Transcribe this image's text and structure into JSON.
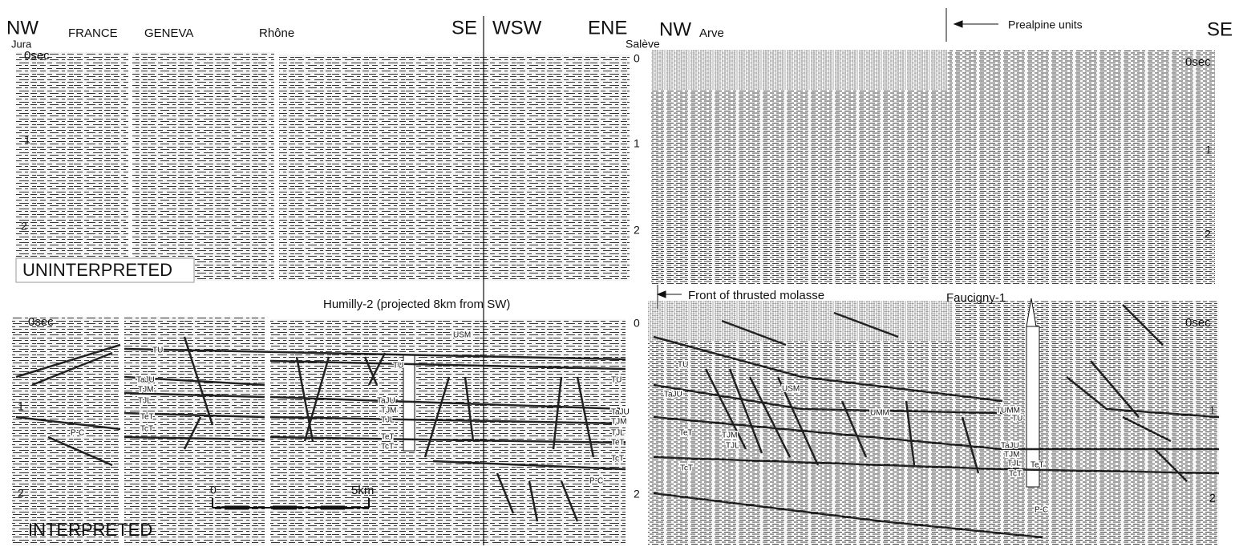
{
  "header": [
    "NW",
    "Jura",
    "FRANCE",
    "GENEVA",
    "Rhône",
    "SE",
    "WSW",
    "ENE",
    "Salève",
    "NW",
    "Arve",
    "Prealpine units",
    "SE"
  ],
  "upper_axes": [
    "0sec",
    "1",
    "2",
    "0",
    "1",
    "2",
    "0sec",
    "1",
    "2"
  ],
  "lower_axes": [
    "0sec",
    "1",
    "2",
    "0",
    "2",
    "0sec",
    "1",
    "2"
  ],
  "captions": [
    "UNINTERPRETED",
    "INTERPRETED"
  ],
  "annotations": [
    "Humilly-2 (projected 8km from SW)",
    "Front of thrusted molasse",
    "Faucigny-1"
  ],
  "scale_bar": [
    "0",
    "5km"
  ],
  "horizons_left": [
    "TU",
    "TaJU",
    "TJM",
    "TJL",
    "TeT",
    "TcT",
    "P-C"
  ],
  "horizons_middle": [
    "USM",
    "TU",
    "TaJU",
    "TJM",
    "TJL",
    "TeT",
    "TcT",
    "TU",
    "TaJU",
    "TJM",
    "TJL",
    "TeT",
    "TcT",
    "P-C"
  ],
  "horizons_right": [
    "TU",
    "TaJU",
    "TeT",
    "TJM",
    "TJL",
    "TcT",
    "USM",
    "UMM",
    "TUMM",
    "TU",
    "TaJU",
    "TJM",
    "TJL",
    "TeT",
    "TcT",
    "P-C"
  ]
}
